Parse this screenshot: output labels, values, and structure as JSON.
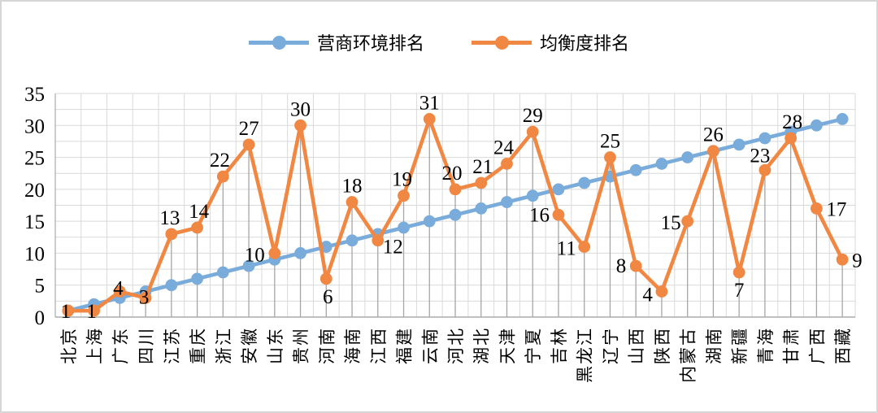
{
  "chart_data": {
    "type": "line",
    "title": "",
    "legend_position": "top",
    "categories": [
      "北京",
      "上海",
      "广东",
      "四川",
      "江苏",
      "重庆",
      "浙江",
      "安徽",
      "山东",
      "贵州",
      "河南",
      "海南",
      "江西",
      "福建",
      "云南",
      "河北",
      "湖北",
      "天津",
      "宁夏",
      "吉林",
      "黑龙江",
      "辽宁",
      "山西",
      "陕西",
      "内蒙古",
      "湖南",
      "新疆",
      "青海",
      "甘肃",
      "广西",
      "西藏"
    ],
    "series": [
      {
        "name": "营商环境排名",
        "color": "#79ACDB",
        "marker": "circle",
        "data_labels": false,
        "drop_lines": false,
        "values": [
          1,
          2,
          3,
          4,
          5,
          6,
          7,
          8,
          9,
          10,
          11,
          12,
          13,
          14,
          15,
          16,
          17,
          18,
          19,
          20,
          21,
          22,
          23,
          24,
          25,
          26,
          27,
          28,
          29,
          30,
          31
        ]
      },
      {
        "name": "均衡度排名",
        "color": "#F08843",
        "marker": "circle",
        "data_labels": true,
        "drop_lines": true,
        "values": [
          1,
          1,
          4,
          3,
          13,
          14,
          22,
          27,
          10,
          30,
          6,
          18,
          12,
          19,
          31,
          20,
          21,
          24,
          29,
          16,
          11,
          25,
          8,
          4,
          15,
          26,
          7,
          23,
          28,
          17,
          9
        ],
        "label_offsets": [
          [
            -3,
            9,
            "m"
          ],
          [
            -3,
            9,
            "m"
          ],
          [
            -2,
            4,
            "m"
          ],
          [
            -2,
            7,
            "m"
          ],
          [
            -2,
            -12,
            "m"
          ],
          [
            2,
            -12,
            "m"
          ],
          [
            -4,
            -12,
            "m"
          ],
          [
            0,
            -12,
            "m"
          ],
          [
            -12,
            10,
            "e"
          ],
          [
            0,
            -12,
            "m"
          ],
          [
            2,
            30,
            "m"
          ],
          [
            0,
            -12,
            "m"
          ],
          [
            6,
            16,
            "s"
          ],
          [
            -2,
            -12,
            "m"
          ],
          [
            0,
            -12,
            "m"
          ],
          [
            -4,
            -12,
            "m"
          ],
          [
            2,
            -12,
            "m"
          ],
          [
            -4,
            -12,
            "m"
          ],
          [
            0,
            -12,
            "m"
          ],
          [
            -11,
            8,
            "e"
          ],
          [
            -10,
            10,
            "e"
          ],
          [
            0,
            -12,
            "m"
          ],
          [
            -12,
            8,
            "e"
          ],
          [
            -11,
            12,
            "e"
          ],
          [
            -8,
            10,
            "e"
          ],
          [
            0,
            -12,
            "m"
          ],
          [
            0,
            30,
            "m"
          ],
          [
            -6,
            -10,
            "m"
          ],
          [
            2,
            -12,
            "m"
          ],
          [
            12,
            9,
            "s"
          ],
          [
            12,
            9,
            "s"
          ]
        ]
      }
    ],
    "y_axis": {
      "min": 0,
      "max": 35,
      "major_step": 5,
      "minor_step": 2.5,
      "tick_labels": [
        "0",
        "5",
        "10",
        "15",
        "20",
        "25",
        "30",
        "35"
      ]
    },
    "x_axis": {
      "label_rotation_deg": -90
    },
    "grid": {
      "horizontal": true,
      "vertical": true,
      "gridline_color": "#D9D9D9",
      "drop_line_color": "#A6A6A6",
      "axis_line_color": "#ABABAB"
    }
  }
}
